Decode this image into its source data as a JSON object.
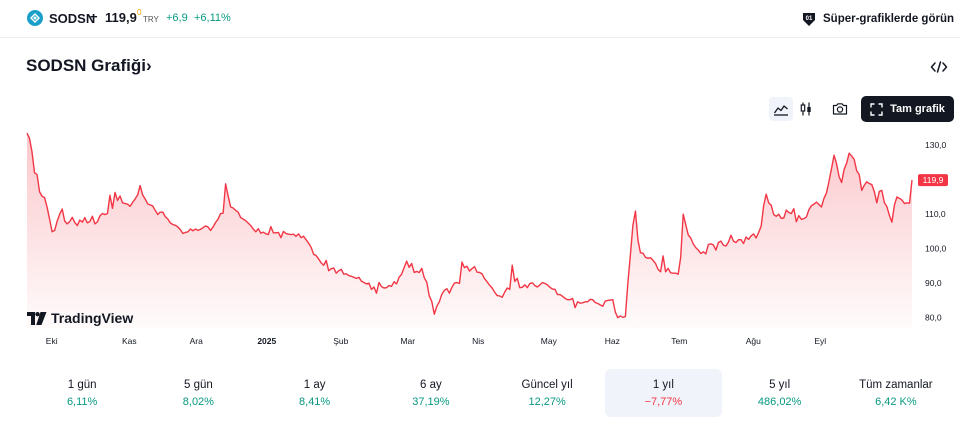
{
  "header": {
    "symbol": "SODSN",
    "dash": "−",
    "price": "119,9",
    "price_sup": "0",
    "currency": "TRY",
    "change": "+6,9",
    "change_pct": "+6,11%",
    "super_charts_label": "Süper-grafiklerde görün"
  },
  "title": "SODSN Grafiği›",
  "toolbar": {
    "fullscreen_label": "Tam grafik"
  },
  "chart_data": {
    "type": "area",
    "symbol": "SODSN",
    "line_color": "#f23645",
    "fill_color": "#f23645",
    "last_value": 119.9,
    "last_value_label": "119,9",
    "y_ticks": [
      "130,0",
      "110,0",
      "100,0",
      "90,0",
      "80,0"
    ],
    "y_tick_values": [
      130,
      110,
      100,
      90,
      80
    ],
    "ylim": [
      77,
      135
    ],
    "x_ticks": [
      "Eki",
      "Kas",
      "Ara",
      "2025",
      "Şub",
      "Mar",
      "Nis",
      "May",
      "Haz",
      "Tem",
      "Ağu",
      "Eyl"
    ],
    "x_tick_bold": [
      false,
      false,
      false,
      true,
      false,
      false,
      false,
      false,
      false,
      false,
      false,
      false
    ],
    "x_range": [
      0,
      251
    ],
    "x_tick_positions": [
      7,
      29,
      48,
      68,
      89,
      108,
      128,
      148,
      166,
      185,
      206,
      225
    ],
    "values": [
      133.5,
      132,
      128,
      122,
      121.5,
      116.5,
      115.2,
      114.8,
      112,
      108.5,
      104.9,
      105.3,
      108,
      110,
      111.5,
      108,
      107.2,
      107.9,
      109.1,
      107.6,
      106.7,
      108.3,
      107.7,
      109,
      107.5,
      107.9,
      109.4,
      107.2,
      107.8,
      109.5,
      110.2,
      109.9,
      110.2,
      115.5,
      111.7,
      116.3,
      114,
      115.3,
      113.3,
      113.1,
      112.9,
      112.3,
      113.4,
      114.4,
      115.6,
      118.3,
      115.6,
      114.4,
      113,
      112.7,
      112.4,
      111.1,
      109.9,
      110.6,
      110.6,
      109.3,
      108.6,
      107.5,
      107,
      106.8,
      106.3,
      105.5,
      104.4,
      104.7,
      104.9,
      105.7,
      105.2,
      105.7,
      105.3,
      105.6,
      106.1,
      106.6,
      106.3,
      105.3,
      106.3,
      107.6,
      108.6,
      110.2,
      110.3,
      118.8,
      115.3,
      112.1,
      111.8,
      111.1,
      110.6,
      109,
      108.6,
      108.1,
      107.4,
      106.7,
      105.7,
      104.9,
      105.8,
      104.5,
      104.8,
      104.3,
      104.1,
      106.4,
      104.6,
      104.6,
      104.7,
      103.2,
      105,
      104.4,
      104.2,
      104.1,
      104.2,
      103.6,
      104.3,
      103.2,
      103.6,
      102.6,
      101.6,
      100.4,
      98.4,
      98,
      97,
      95.9,
      95.2,
      96.6,
      93.6,
      94.2,
      94.4,
      92.9,
      93.6,
      94,
      92.6,
      92.7,
      92.2,
      92,
      91.7,
      91.4,
      91.7,
      90.6,
      90.2,
      89.8,
      90,
      88.2,
      88.9,
      87.1,
      90.2,
      89,
      88.6,
      88.7,
      89.3,
      89.1,
      90.4,
      89.8,
      91.7,
      92.6,
      94.5,
      96.4,
      94.6,
      95.7,
      93.1,
      93.4,
      93.1,
      94.3,
      91.6,
      90.3,
      86.3,
      84.7,
      81,
      83.3,
      84.6,
      86.8,
      87.9,
      88.4,
      87.1,
      88.8,
      90,
      90.2,
      89.9,
      96.1,
      94.5,
      94.9,
      93.5,
      94.2,
      94.8,
      93.2,
      93.1,
      92.7,
      91.3,
      90.4,
      89.4,
      88.6,
      87.4,
      86.4,
      86.3,
      85.9,
      87.4,
      88.6,
      88.2,
      95.2,
      90.5,
      91.4,
      88.7,
      88.8,
      89.5,
      88.7,
      89.9,
      90.1,
      89.3,
      88.9,
      89.5,
      90.2,
      89.9,
      89.5,
      88.8,
      88.3,
      88.2,
      86.7,
      86.7,
      86.2,
      85.6,
      85.2,
      85.2,
      85.6,
      82.9,
      84.6,
      84.2,
      84.3,
      84.6,
      84.6,
      85.3,
      85.2,
      84.4,
      84.1,
      83.7,
      83.3,
      84.8,
      85,
      85.1,
      85.2,
      81.6,
      80,
      80.5,
      80.1,
      80.3,
      90.1,
      98.3,
      106.8,
      110.9,
      102.5,
      98.8,
      98.7,
      97.5,
      97.2,
      97.4,
      96.6,
      95.7,
      94,
      93.3,
      97.9,
      93.3,
      94.3,
      93,
      92.9,
      92.9,
      92.6,
      97.5,
      110,
      107,
      104,
      103.1,
      101.4,
      100.3,
      99.6,
      98.6,
      99.1,
      98.5,
      101.2,
      101.4,
      101.1,
      99.6,
      101.8,
      102.2,
      101,
      100.8,
      101.9,
      103.9,
      102.2,
      101.8,
      102.6,
      102.6,
      101.5,
      103.4,
      102.7,
      103.7,
      104.3,
      103.1,
      104.7,
      106.5,
      112.5,
      115.8,
      113.3,
      112.6,
      109.9,
      109.4,
      110,
      108.8,
      108.9,
      111.2,
      110.5,
      110.2,
      111.6,
      107.8,
      109.6,
      108.5,
      108.7,
      109.2,
      111.3,
      112.5,
      112.9,
      113.5,
      112.8,
      112.1,
      114.6,
      116.2,
      119.6,
      123.3,
      127.1,
      124.6,
      120.9,
      119.2,
      123,
      124.8,
      127.7,
      126.9,
      125.9,
      122.6,
      121.5,
      116.9,
      118.4,
      119.4,
      118.9,
      118.6,
      116.6,
      113.3,
      116.6,
      116.9,
      113.4,
      112.2,
      109.7,
      107.7,
      112.6,
      115,
      114.6,
      114.1,
      113.1,
      113.3,
      113.2,
      119.9
    ]
  },
  "branding": {
    "text": "TradingView"
  },
  "periods": [
    {
      "label": "1 gün",
      "value": "6,11%",
      "sign": "pos"
    },
    {
      "label": "5 gün",
      "value": "8,02%",
      "sign": "pos"
    },
    {
      "label": "1 ay",
      "value": "8,41%",
      "sign": "pos"
    },
    {
      "label": "6 ay",
      "value": "37,19%",
      "sign": "pos"
    },
    {
      "label": "Güncel yıl",
      "value": "12,27%",
      "sign": "pos"
    },
    {
      "label": "1 yıl",
      "value": "−7,77%",
      "sign": "neg",
      "active": true
    },
    {
      "label": "5 yıl",
      "value": "486,02%",
      "sign": "pos"
    },
    {
      "label": "Tüm zamanlar",
      "value": "6,42 K%",
      "sign": "pos"
    }
  ]
}
